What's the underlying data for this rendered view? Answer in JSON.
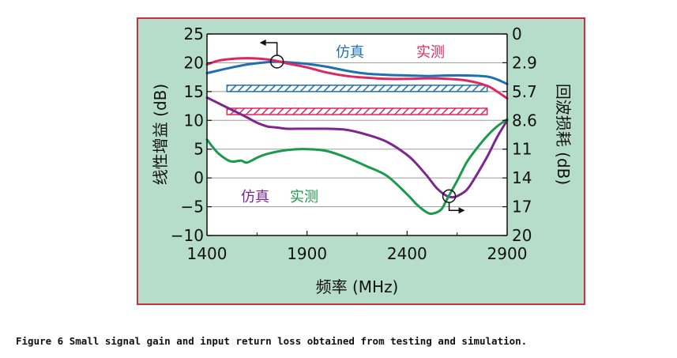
{
  "caption": "Figure 6 Small signal gain and input return loss obtained from testing and simulation.",
  "colors": {
    "panel_background": "#b6ddc9",
    "panel_border": "#c8323c",
    "plot_background": "#ffffff",
    "simulation_gain": "#1f6fb5",
    "measured_gain": "#e0265e",
    "simulation_return_loss": "#7d2690",
    "measured_return_loss": "#1a9a4c",
    "grid": "#9a9a9a"
  },
  "chart_data": {
    "type": "line",
    "xlabel": "频率 (MHz)",
    "ylabel": "线性增益 (dB)",
    "y2label": "回波损耗 (dB)",
    "xlim": [
      1400,
      2900
    ],
    "ylim": [
      -10,
      25
    ],
    "y2lim": [
      0,
      20
    ],
    "y2_inverted": true,
    "grid": "horizontal",
    "xticks": [
      "1400",
      "1900",
      "2400",
      "2900"
    ],
    "xtick_values": [
      1400,
      1900,
      2400,
      2900
    ],
    "yticks": [
      "25",
      "20",
      "15",
      "10",
      "5",
      "0",
      "−5",
      "−10"
    ],
    "ytick_values": [
      25,
      20,
      15,
      10,
      5,
      0,
      -5,
      -10
    ],
    "y2ticks": [
      "0",
      "2.9",
      "5.7",
      "8.6",
      "11",
      "14",
      "17",
      "20"
    ],
    "y2tick_values": [
      0,
      2.9,
      5.7,
      8.6,
      11,
      14,
      17,
      20
    ],
    "legend_top": {
      "sim": "仿真",
      "meas": "实测"
    },
    "legend_bottom": {
      "sim": "仿真",
      "meas": "实测"
    },
    "series": [
      {
        "name": "仿真",
        "group": "gain",
        "axis": "left",
        "color": "#1f6fb5",
        "x": [
          1400,
          1500,
          1600,
          1700,
          1750,
          1800,
          1900,
          2000,
          2100,
          2200,
          2300,
          2400,
          2500,
          2600,
          2700,
          2800,
          2850,
          2900
        ],
        "y": [
          18.2,
          19.0,
          19.7,
          20.1,
          20.2,
          20.1,
          19.8,
          19.3,
          18.6,
          18.1,
          17.9,
          17.8,
          17.7,
          17.8,
          17.8,
          17.6,
          17.1,
          16.3
        ]
      },
      {
        "name": "实测",
        "group": "gain",
        "axis": "left",
        "color": "#e0265e",
        "x": [
          1400,
          1450,
          1500,
          1600,
          1700,
          1750,
          1800,
          1900,
          2000,
          2100,
          2200,
          2300,
          2400,
          2500,
          2600,
          2700,
          2800,
          2850,
          2900
        ],
        "y": [
          19.7,
          20.3,
          20.6,
          20.8,
          20.6,
          20.3,
          19.9,
          19.2,
          18.3,
          17.7,
          17.4,
          17.2,
          17.2,
          17.3,
          17.2,
          16.9,
          16.0,
          15.0,
          13.8
        ]
      },
      {
        "name": "仿真",
        "group": "return_loss",
        "axis": "right",
        "color": "#7d2690",
        "x": [
          1400,
          1450,
          1500,
          1550,
          1600,
          1650,
          1700,
          1750,
          1800,
          1850,
          1900,
          2000,
          2100,
          2200,
          2300,
          2400,
          2450,
          2500,
          2550,
          2600,
          2630,
          2650,
          2700,
          2750,
          2800,
          2850,
          2900
        ],
        "y": [
          6.3,
          6.8,
          7.3,
          7.8,
          8.3,
          8.8,
          9.1,
          9.2,
          9.3,
          9.3,
          9.3,
          9.3,
          9.4,
          9.8,
          10.4,
          11.6,
          12.6,
          13.8,
          15.1,
          15.9,
          16.0,
          15.9,
          15.2,
          13.6,
          11.8,
          10.0,
          8.6
        ]
      },
      {
        "name": "实测",
        "group": "return_loss",
        "axis": "right",
        "color": "#1a9a4c",
        "x": [
          1400,
          1450,
          1500,
          1530,
          1570,
          1600,
          1650,
          1700,
          1800,
          1900,
          2000,
          2100,
          2200,
          2300,
          2400,
          2450,
          2500,
          2530,
          2570,
          2600,
          2650,
          2700,
          2750,
          2800,
          2850,
          2900
        ],
        "y": [
          10.2,
          11.3,
          12.1,
          12.3,
          12.2,
          12.4,
          11.9,
          11.5,
          11.1,
          11.0,
          11.2,
          11.9,
          12.8,
          13.8,
          15.7,
          16.8,
          17.6,
          17.7,
          17.3,
          16.2,
          14.3,
          12.3,
          10.9,
          9.9,
          9.1,
          8.5
        ]
      }
    ],
    "specification_bands": [
      {
        "axis": "left",
        "x": [
          1500,
          2800
        ],
        "y": [
          15.0,
          16.1
        ],
        "color": "#1f6fb5",
        "pattern": "hatched"
      },
      {
        "axis": "left",
        "x": [
          1500,
          2800
        ],
        "y": [
          11.0,
          12.1
        ],
        "color": "#e0265e",
        "pattern": "hatched"
      }
    ],
    "markers": [
      {
        "target": "gain",
        "x": 1750,
        "y": 20.2,
        "arrow": "left"
      },
      {
        "target": "return_loss",
        "x": 2610,
        "y": 15.9,
        "arrow": "right"
      }
    ]
  }
}
